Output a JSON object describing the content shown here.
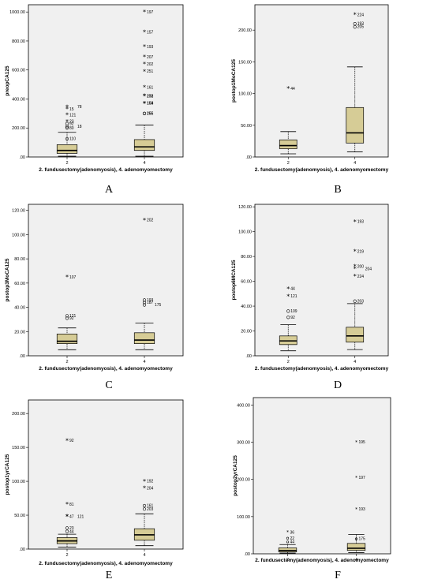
{
  "chart_data": [
    {
      "id": "A",
      "type": "boxplot",
      "panel_label": "A",
      "ylabel": "preopCA125",
      "xlabel": "2. fundusectomy(adenomyosis), 4. adenomyomectomy",
      "categories": [
        "2",
        "4"
      ],
      "ylim": [
        0,
        1050
      ],
      "yticks": [
        0,
        200,
        400,
        600,
        800,
        1000
      ],
      "ytick_labels": [
        ".00",
        "200.00",
        "400.00",
        "600.00",
        "800.00",
        "1000.00"
      ],
      "boxes": [
        {
          "category": "2",
          "whisker_low": 5,
          "q1": 25,
          "median": 45,
          "q3": 85,
          "whisker_high": 170,
          "outliers": [
            {
              "label": "15",
              "value": 330,
              "marker": "*"
            },
            {
              "label": "78",
              "value": 345,
              "marker": "*"
            },
            {
              "label": "121",
              "value": 290,
              "marker": "*"
            },
            {
              "label": "23",
              "value": 245,
              "marker": "*"
            },
            {
              "label": "92",
              "value": 230,
              "marker": "o"
            },
            {
              "label": "18",
              "value": 210,
              "marker": "o"
            },
            {
              "label": "80",
              "value": 200,
              "marker": "o"
            },
            {
              "label": "110",
              "value": 125,
              "marker": "o"
            }
          ]
        },
        {
          "category": "4",
          "whisker_low": 5,
          "q1": 45,
          "median": 70,
          "q3": 120,
          "whisker_high": 220,
          "outliers": [
            {
              "label": "197",
              "value": 1000,
              "marker": "*"
            },
            {
              "label": "157",
              "value": 860,
              "marker": "*"
            },
            {
              "label": "193",
              "value": 760,
              "marker": "*"
            },
            {
              "label": "207",
              "value": 690,
              "marker": "*"
            },
            {
              "label": "202",
              "value": 640,
              "marker": "*"
            },
            {
              "label": "251",
              "value": 590,
              "marker": "*"
            },
            {
              "label": "161",
              "value": 480,
              "marker": "*"
            },
            {
              "label": "258",
              "value": 420,
              "marker": "*"
            },
            {
              "label": "172",
              "value": 420,
              "marker": "*"
            },
            {
              "label": "159",
              "value": 370,
              "marker": "*"
            },
            {
              "label": "164",
              "value": 370,
              "marker": "*"
            },
            {
              "label": "255",
              "value": 300,
              "marker": "o"
            },
            {
              "label": "166",
              "value": 300,
              "marker": "o"
            }
          ]
        }
      ]
    },
    {
      "id": "B",
      "type": "boxplot",
      "panel_label": "B",
      "ylabel": "postop1MoCA125",
      "xlabel": "2. fundusectomy(adenomyosis), 4. adenomyomectomy",
      "categories": [
        "2",
        "4"
      ],
      "ylim": [
        0,
        240
      ],
      "yticks": [
        0,
        50,
        100,
        150,
        200
      ],
      "ytick_labels": [
        ".00",
        "50.00",
        "100.00",
        "150.00",
        "200.00"
      ],
      "boxes": [
        {
          "category": "2",
          "whisker_low": 5,
          "q1": 13,
          "median": 18,
          "q3": 27,
          "whisker_high": 40,
          "outliers": [
            {
              "label": "44",
              "value": 108,
              "marker": "*"
            }
          ]
        },
        {
          "category": "4",
          "whisker_low": 8,
          "q1": 22,
          "median": 38,
          "q3": 78,
          "whisker_high": 142,
          "outliers": [
            {
              "label": "224",
              "value": 224,
              "marker": "*"
            },
            {
              "label": "193",
              "value": 210,
              "marker": "o"
            },
            {
              "label": "205",
              "value": 205,
              "marker": "o"
            }
          ]
        }
      ]
    },
    {
      "id": "C",
      "type": "boxplot",
      "panel_label": "C",
      "ylabel": "postop3MoCA125",
      "xlabel": "2. fundusectomy(adenomyosis), 4. adenomyomectomy",
      "categories": [
        "2",
        "4"
      ],
      "ylim": [
        0,
        125
      ],
      "yticks": [
        0,
        20,
        40,
        60,
        80,
        100,
        120
      ],
      "ytick_labels": [
        ".00",
        "20.00",
        "40.00",
        "60.00",
        "80.00",
        "100.00",
        "120.00"
      ],
      "boxes": [
        {
          "category": "2",
          "whisker_low": 5,
          "q1": 10,
          "median": 12,
          "q3": 18,
          "whisker_high": 23,
          "outliers": [
            {
              "label": "107",
              "value": 65,
              "marker": "*"
            },
            {
              "label": "121",
              "value": 33,
              "marker": "o"
            },
            {
              "label": "92",
              "value": 31,
              "marker": "o"
            }
          ]
        },
        {
          "category": "4",
          "whisker_low": 5,
          "q1": 10,
          "median": 13,
          "q3": 19,
          "whisker_high": 27,
          "outliers": [
            {
              "label": "202",
              "value": 112,
              "marker": "*"
            },
            {
              "label": "193",
              "value": 46,
              "marker": "o"
            },
            {
              "label": "187",
              "value": 44,
              "marker": "o"
            },
            {
              "label": "175",
              "value": 42,
              "marker": "o"
            }
          ]
        }
      ]
    },
    {
      "id": "D",
      "type": "boxplot",
      "panel_label": "D",
      "ylabel": "postop6MCA125",
      "xlabel": "2. fundusectomy(adenomyosis), 4. adenomyomectomy",
      "categories": [
        "2",
        "4"
      ],
      "ylim": [
        0,
        122
      ],
      "yticks": [
        0,
        20,
        40,
        60,
        80,
        100,
        120
      ],
      "ytick_labels": [
        ".00",
        "20.00",
        "40.00",
        "60.00",
        "80.00",
        "100.00",
        "120.00"
      ],
      "boxes": [
        {
          "category": "2",
          "whisker_low": 4,
          "q1": 9,
          "median": 12,
          "q3": 16,
          "whisker_high": 25,
          "outliers": [
            {
              "label": "44",
              "value": 54,
              "marker": "*"
            },
            {
              "label": "121",
              "value": 48,
              "marker": "*"
            },
            {
              "label": "109",
              "value": 36,
              "marker": "o"
            },
            {
              "label": "92",
              "value": 31,
              "marker": "o"
            }
          ]
        },
        {
          "category": "4",
          "whisker_low": 5,
          "q1": 11,
          "median": 16,
          "q3": 23,
          "whisker_high": 42,
          "outliers": [
            {
              "label": "193",
              "value": 108,
              "marker": "*"
            },
            {
              "label": "219",
              "value": 84,
              "marker": "*"
            },
            {
              "label": "200",
              "value": 72,
              "marker": "*"
            },
            {
              "label": "204",
              "value": 70,
              "marker": "*"
            },
            {
              "label": "224",
              "value": 64,
              "marker": "*"
            },
            {
              "label": "203",
              "value": 44,
              "marker": "o"
            }
          ]
        }
      ]
    },
    {
      "id": "E",
      "type": "boxplot",
      "panel_label": "E",
      "ylabel": "postop1yrCA125",
      "xlabel": "2. fundusectomy(adenomyosis), 4. adenomyomectomy",
      "categories": [
        "2",
        "4"
      ],
      "ylim": [
        0,
        220
      ],
      "yticks": [
        0,
        50,
        100,
        150,
        200
      ],
      "ytick_labels": [
        ".00",
        "50.00",
        "100.00",
        "150.00",
        "200.00"
      ],
      "boxes": [
        {
          "category": "2",
          "whisker_low": 3,
          "q1": 8,
          "median": 12,
          "q3": 17,
          "whisker_high": 22,
          "outliers": [
            {
              "label": "92",
              "value": 160,
              "marker": "*"
            },
            {
              "label": "81",
              "value": 66,
              "marker": "*"
            },
            {
              "label": "47",
              "value": 48,
              "marker": "*"
            },
            {
              "label": "121",
              "value": 48,
              "marker": "*"
            },
            {
              "label": "23",
              "value": 31,
              "marker": "o"
            },
            {
              "label": "44",
              "value": 26,
              "marker": "o"
            }
          ]
        },
        {
          "category": "4",
          "whisker_low": 5,
          "q1": 13,
          "median": 21,
          "q3": 30,
          "whisker_high": 52,
          "outliers": [
            {
              "label": "192",
              "value": 100,
              "marker": "*"
            },
            {
              "label": "204",
              "value": 90,
              "marker": "*"
            },
            {
              "label": "161",
              "value": 64,
              "marker": "o"
            },
            {
              "label": "203",
              "value": 59,
              "marker": "o"
            }
          ]
        }
      ]
    },
    {
      "id": "F",
      "type": "boxplot",
      "panel_label": "F",
      "ylabel": "postop2yrCA125",
      "xlabel": "2. fundusectomy(adenomyosis), 4. adenomyomectomy",
      "categories": [
        "2",
        "4"
      ],
      "ylim": [
        0,
        420
      ],
      "yticks": [
        0,
        100,
        200,
        300,
        400
      ],
      "ytick_labels": [
        ".00",
        "100.00",
        "200.00",
        "300.00",
        "400.00"
      ],
      "boxes": [
        {
          "category": "2",
          "whisker_low": 2,
          "q1": 5,
          "median": 9,
          "q3": 16,
          "whisker_high": 25,
          "outliers": [
            {
              "label": "36",
              "value": 58,
              "marker": "*"
            },
            {
              "label": "22",
              "value": 42,
              "marker": "o"
            },
            {
              "label": "44",
              "value": 32,
              "marker": "o"
            }
          ]
        },
        {
          "category": "4",
          "whisker_low": 3,
          "q1": 9,
          "median": 15,
          "q3": 28,
          "whisker_high": 52,
          "outliers": [
            {
              "label": "195",
              "value": 300,
              "marker": "*"
            },
            {
              "label": "197",
              "value": 205,
              "marker": "*"
            },
            {
              "label": "193",
              "value": 120,
              "marker": "*"
            },
            {
              "label": "175",
              "value": 40,
              "marker": "o"
            }
          ]
        }
      ]
    }
  ],
  "colors": {
    "box_fill": "#d6cc96",
    "plot_background": "#f0f0f0",
    "ink": "#000000"
  }
}
